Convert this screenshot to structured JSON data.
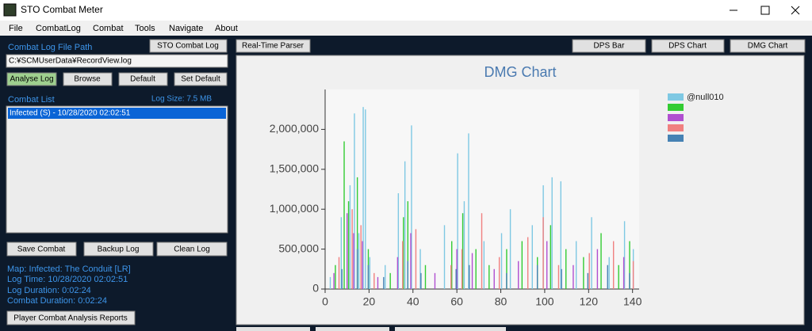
{
  "window": {
    "title": "STO Combat Meter"
  },
  "menu": [
    "File",
    "CombatLog",
    "Combat",
    "Tools",
    "Navigate",
    "About"
  ],
  "left_panel": {
    "file_path_label": "Combat Log File Path",
    "sto_button": "STO Combat Log",
    "file_path": "C:¥SCMUserData¥RecordView.log",
    "buttons": [
      "Analyse Log",
      "Browse",
      "Default",
      "Set Default"
    ],
    "combat_list_label": "Combat List",
    "log_size": "Log Size: 7.5 MB",
    "combat_list": [
      "Infected (S) - 10/28/2020 02:02:51"
    ],
    "action_buttons": [
      "Save Combat",
      "Backup Log",
      "Clean Log"
    ],
    "info": [
      "Map: Infected: The Conduit [LR]",
      "Log Time: 10/28/2020 02:02:51",
      "Log Duration: 0:02:24",
      "Combat Duration: 0:02:24"
    ],
    "report_button": "Player Combat Analysis Reports"
  },
  "tabs": {
    "realtime": "Real-Time Parser",
    "views": [
      "DPS Bar",
      "DPS Chart",
      "DMG Chart"
    ]
  },
  "chart_data": {
    "type": "bar",
    "title": "DMG Chart",
    "xlim": [
      0,
      143
    ],
    "xticks": [
      0,
      20,
      40,
      60,
      80,
      100,
      120,
      140
    ],
    "ylim": [
      0,
      2500000
    ],
    "yticks": [
      0,
      {
        "value": 500000,
        "label": "500,000"
      },
      {
        "value": 1000000,
        "label": "1,000,000"
      },
      {
        "value": 1500000,
        "label": "1,500,000"
      },
      {
        "value": 2000000,
        "label": "2,000,000"
      }
    ],
    "series": [
      {
        "name": "@null010",
        "color": "#7ec8e3",
        "x": [
          3,
          8,
          12,
          14,
          16,
          18,
          19,
          21,
          28,
          34,
          37,
          40,
          44,
          55,
          61,
          64,
          66,
          73,
          81,
          85,
          95,
          100,
          104,
          108,
          115,
          122,
          130,
          137,
          141
        ],
        "values": [
          150000,
          900000,
          1300000,
          2200000,
          700000,
          2280000,
          2250000,
          400000,
          300000,
          1200000,
          1600000,
          2050000,
          500000,
          800000,
          1700000,
          1100000,
          1950000,
          600000,
          700000,
          1000000,
          800000,
          1300000,
          1400000,
          1350000,
          600000,
          900000,
          400000,
          850000,
          500000
        ]
      },
      {
        "color": "#33cc33",
        "x": [
          5,
          9,
          11,
          15,
          20,
          30,
          36,
          38,
          46,
          58,
          63,
          69,
          75,
          83,
          90,
          97,
          103,
          110,
          118,
          126,
          134,
          139
        ],
        "values": [
          300000,
          1850000,
          1100000,
          1400000,
          500000,
          200000,
          900000,
          1100000,
          300000,
          600000,
          950000,
          500000,
          300000,
          500000,
          600000,
          400000,
          800000,
          500000,
          400000,
          700000,
          300000,
          600000
        ]
      },
      {
        "color": "#b04fd0",
        "x": [
          4,
          10,
          13,
          17,
          24,
          33,
          39,
          50,
          60,
          67,
          77,
          88,
          101,
          113,
          124,
          136
        ],
        "values": [
          200000,
          950000,
          700000,
          600000,
          150000,
          400000,
          700000,
          200000,
          500000,
          450000,
          250000,
          350000,
          600000,
          300000,
          500000,
          400000
        ]
      },
      {
        "color": "#f08080",
        "x": [
          6,
          12,
          16,
          22,
          35,
          41,
          57,
          62,
          71,
          79,
          92,
          99,
          106,
          120,
          131,
          140
        ],
        "values": [
          400000,
          1000000,
          800000,
          200000,
          600000,
          750000,
          300000,
          500000,
          950000,
          400000,
          650000,
          900000,
          300000,
          450000,
          600000,
          350000
        ]
      },
      {
        "color": "#4682b4",
        "x": [
          7,
          14,
          19,
          26,
          37,
          43,
          59,
          65,
          82,
          96,
          107,
          119,
          128,
          138
        ],
        "values": [
          250000,
          500000,
          300000,
          150000,
          350000,
          200000,
          250000,
          300000,
          200000,
          300000,
          250000,
          200000,
          300000,
          200000
        ]
      }
    ]
  }
}
